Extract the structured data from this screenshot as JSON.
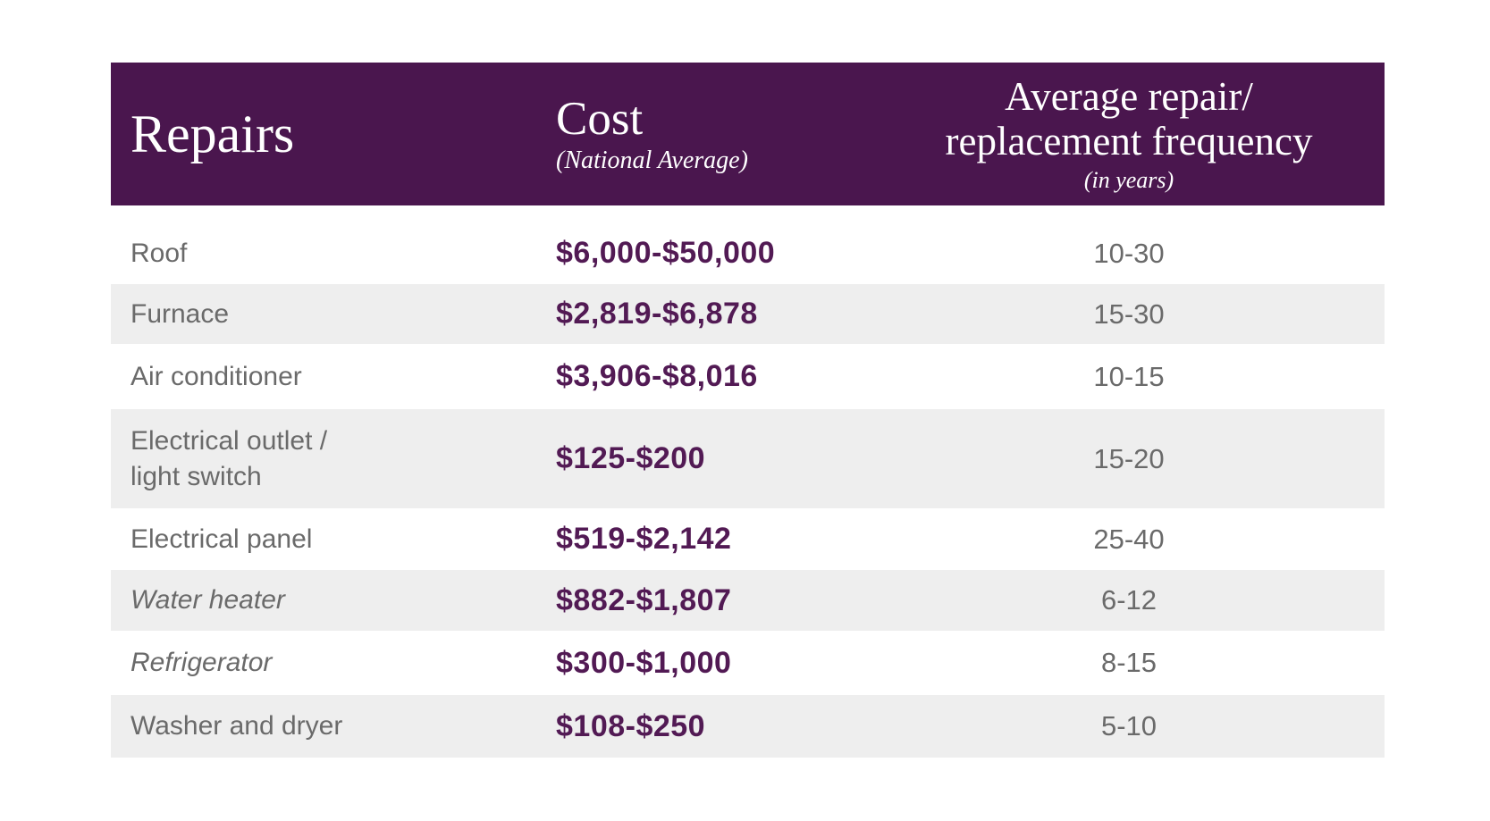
{
  "colors": {
    "header_bg": "#4a164e",
    "header_text": "#ffffff",
    "cost_text": "#521a54",
    "row_alt_bg": "#eeeeee",
    "body_text": "#6a6a6a",
    "page_bg": "#ffffff"
  },
  "header": {
    "col1": "Repairs",
    "col2_title": "Cost",
    "col2_sub": "(National Average)",
    "col3_line1": "Average repair/",
    "col3_line2": "replacement frequency",
    "col3_sub": "(in years)"
  },
  "chart_data": {
    "type": "table",
    "title": "Home repairs: cost and average repair/replacement frequency",
    "columns": [
      "Repairs",
      "Cost (National Average)",
      "Average repair/replacement frequency (in years)"
    ],
    "rows": [
      {
        "repair": "Roof",
        "cost": "$6,000-$50,000",
        "frequency": "10-30",
        "italic": false,
        "shaded": false
      },
      {
        "repair": "Furnace",
        "cost": "$2,819-$6,878",
        "frequency": "15-30",
        "italic": false,
        "shaded": true
      },
      {
        "repair": "Air conditioner",
        "cost": "$3,906-$8,016",
        "frequency": "10-15",
        "italic": false,
        "shaded": false
      },
      {
        "repair": "Electrical outlet /\nlight switch",
        "cost": "$125-$200",
        "frequency": "15-20",
        "italic": false,
        "shaded": true
      },
      {
        "repair": "Electrical panel",
        "cost": "$519-$2,142",
        "frequency": "25-40",
        "italic": false,
        "shaded": false
      },
      {
        "repair": "Water heater",
        "cost": "$882-$1,807",
        "frequency": "6-12",
        "italic": true,
        "shaded": true
      },
      {
        "repair": "Refrigerator",
        "cost": "$300-$1,000",
        "frequency": "8-15",
        "italic": true,
        "shaded": false
      },
      {
        "repair": "Washer and dryer",
        "cost": "$108-$250",
        "frequency": "5-10",
        "italic": false,
        "shaded": true
      }
    ]
  }
}
